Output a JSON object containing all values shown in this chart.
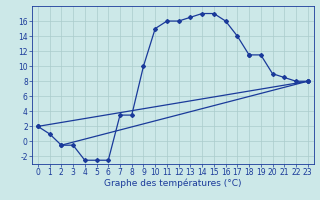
{
  "xlabel": "Graphe des températures (°C)",
  "background_color": "#cce8e8",
  "grid_color": "#aacccc",
  "line_color": "#1a3a9a",
  "ylim": [
    -3,
    18
  ],
  "xlim": [
    -0.5,
    23.5
  ],
  "yticks": [
    -2,
    0,
    2,
    4,
    6,
    8,
    10,
    12,
    14,
    16
  ],
  "xticks": [
    0,
    1,
    2,
    3,
    4,
    5,
    6,
    7,
    8,
    9,
    10,
    11,
    12,
    13,
    14,
    15,
    16,
    17,
    18,
    19,
    20,
    21,
    22,
    23
  ],
  "series1_x": [
    0,
    1,
    2,
    3,
    4,
    5,
    6,
    7,
    8,
    9,
    10,
    11,
    12,
    13,
    14,
    15,
    16,
    17,
    18
  ],
  "series1_y": [
    2,
    1,
    -0.5,
    -0.5,
    -2.5,
    -2.5,
    -2.5,
    3.5,
    3.5,
    10,
    15,
    16,
    16,
    16.5,
    17,
    17,
    16,
    14,
    11.5
  ],
  "series2_x": [
    0,
    23
  ],
  "series2_y": [
    2,
    8
  ],
  "series3_x": [
    2,
    23
  ],
  "series3_y": [
    -0.5,
    8
  ],
  "series4_x": [
    18,
    19,
    20,
    21,
    22,
    23
  ],
  "series4_y": [
    11.5,
    11.5,
    9,
    8.5,
    8,
    8
  ],
  "marker_size": 2,
  "line_width": 0.9,
  "tick_fontsize": 5.5,
  "xlabel_fontsize": 6.5
}
